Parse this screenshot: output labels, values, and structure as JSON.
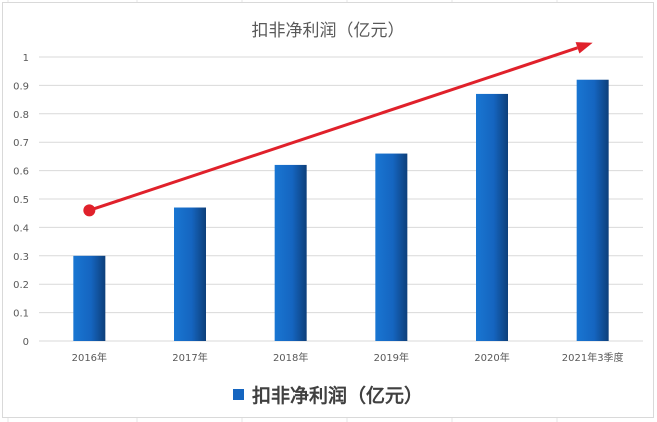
{
  "chart_data": {
    "type": "bar",
    "title": "扣非净利润（亿元）",
    "categories": [
      "2016年",
      "2017年",
      "2018年",
      "2019年",
      "2020年",
      "2021年3季度"
    ],
    "series": [
      {
        "name": "扣非净利润（亿元）",
        "values": [
          0.3,
          0.47,
          0.62,
          0.66,
          0.87,
          0.92
        ]
      }
    ],
    "ylim": [
      0,
      1
    ],
    "yticks": [
      "0",
      "0.1",
      "0.2",
      "0.3",
      "0.4",
      "0.5",
      "0.6",
      "0.7",
      "0.8",
      "0.9",
      "1"
    ],
    "grid": true,
    "legend": "bottom",
    "annotation": {
      "type": "arrow",
      "color": "#e0212b",
      "from": [
        "2016年",
        0.46
      ],
      "to": [
        "2021年3季度",
        1.05
      ]
    },
    "colors": {
      "bar": "#1565c0",
      "bar_dark": "#0d3f7a",
      "grid": "#d9d9d9",
      "arrow": "#e0212b"
    }
  }
}
